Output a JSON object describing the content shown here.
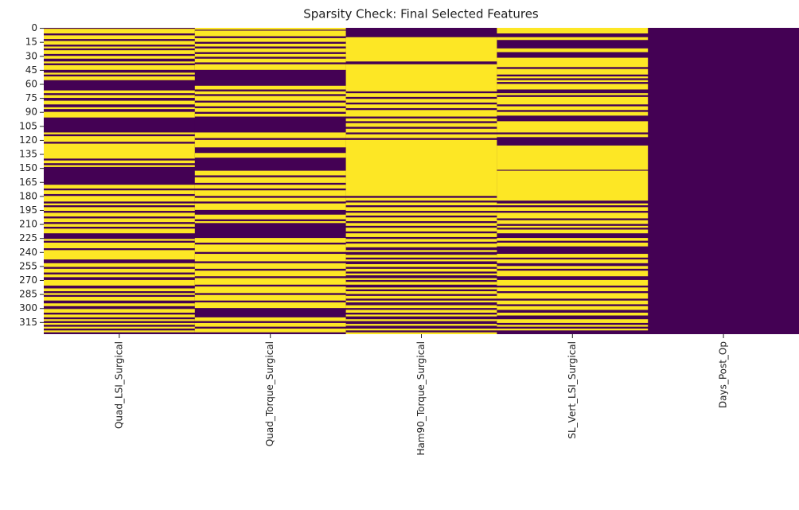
{
  "chart_data": {
    "type": "heatmap",
    "title": "Sparsity Check: Final Selected Features",
    "colors": {
      "on": "#fde725",
      "off": "#440154"
    },
    "ylim": [
      0,
      328
    ],
    "yticks": [
      0,
      15,
      30,
      45,
      60,
      75,
      90,
      105,
      120,
      135,
      150,
      165,
      180,
      195,
      210,
      225,
      240,
      255,
      270,
      285,
      300,
      315
    ],
    "series": [
      {
        "name": "Quad_LSI_Surgical",
        "spans": [
          [
            1,
            6
          ],
          [
            8,
            12
          ],
          [
            14,
            18
          ],
          [
            20,
            22
          ],
          [
            24,
            28
          ],
          [
            30,
            33
          ],
          [
            36,
            38
          ],
          [
            40,
            45
          ],
          [
            48,
            50
          ],
          [
            52,
            56
          ],
          [
            67,
            70
          ],
          [
            72,
            75
          ],
          [
            78,
            82
          ],
          [
            85,
            87
          ],
          [
            90,
            96
          ],
          [
            112,
            114
          ],
          [
            116,
            122
          ],
          [
            124,
            140
          ],
          [
            142,
            145
          ],
          [
            147,
            149
          ],
          [
            168,
            172
          ],
          [
            174,
            178
          ],
          [
            180,
            186
          ],
          [
            188,
            190
          ],
          [
            192,
            196
          ],
          [
            198,
            202
          ],
          [
            204,
            208
          ],
          [
            210,
            213
          ],
          [
            215,
            220
          ],
          [
            226,
            228
          ],
          [
            230,
            236
          ],
          [
            238,
            248
          ],
          [
            252,
            256
          ],
          [
            258,
            262
          ],
          [
            264,
            267
          ],
          [
            270,
            276
          ],
          [
            279,
            282
          ],
          [
            284,
            286
          ],
          [
            288,
            292
          ],
          [
            295,
            298
          ],
          [
            301,
            305
          ],
          [
            307,
            310
          ],
          [
            312,
            314
          ],
          [
            316,
            318
          ],
          [
            320,
            322
          ],
          [
            324,
            326
          ]
        ]
      },
      {
        "name": "Quad_Torque_Surgical",
        "spans": [
          [
            0,
            2
          ],
          [
            3,
            9
          ],
          [
            11,
            15
          ],
          [
            17,
            20
          ],
          [
            22,
            26
          ],
          [
            28,
            31
          ],
          [
            33,
            37
          ],
          [
            39,
            45
          ],
          [
            62,
            66
          ],
          [
            68,
            71
          ],
          [
            73,
            78
          ],
          [
            80,
            84
          ],
          [
            86,
            90
          ],
          [
            92,
            95
          ],
          [
            112,
            118
          ],
          [
            120,
            128
          ],
          [
            134,
            139
          ],
          [
            153,
            158
          ],
          [
            160,
            166
          ],
          [
            168,
            172
          ],
          [
            174,
            180
          ],
          [
            182,
            186
          ],
          [
            188,
            195
          ],
          [
            200,
            205
          ],
          [
            207,
            209
          ],
          [
            225,
            230
          ],
          [
            232,
            240
          ],
          [
            242,
            250
          ],
          [
            252,
            258
          ],
          [
            260,
            266
          ],
          [
            268,
            275
          ],
          [
            277,
            284
          ],
          [
            286,
            292
          ],
          [
            294,
            300
          ],
          [
            310,
            314
          ],
          [
            316,
            320
          ],
          [
            322,
            326
          ]
        ]
      },
      {
        "name": "Ham90_Torque_Surgical",
        "spans": [
          [
            10,
            36
          ],
          [
            39,
            68
          ],
          [
            70,
            74
          ],
          [
            76,
            80
          ],
          [
            82,
            86
          ],
          [
            88,
            95
          ],
          [
            97,
            100
          ],
          [
            102,
            106
          ],
          [
            108,
            112
          ],
          [
            114,
            118
          ],
          [
            120,
            180
          ],
          [
            182,
            185
          ],
          [
            187,
            190
          ],
          [
            192,
            196
          ],
          [
            198,
            201
          ],
          [
            203,
            207
          ],
          [
            209,
            212
          ],
          [
            214,
            218
          ],
          [
            220,
            224
          ],
          [
            226,
            229
          ],
          [
            231,
            235
          ],
          [
            238,
            240
          ],
          [
            243,
            246
          ],
          [
            248,
            250
          ],
          [
            253,
            256
          ],
          [
            258,
            261
          ],
          [
            263,
            265
          ],
          [
            268,
            270
          ],
          [
            272,
            275
          ],
          [
            278,
            280
          ],
          [
            282,
            285
          ],
          [
            287,
            290
          ],
          [
            292,
            294
          ],
          [
            297,
            300
          ],
          [
            302,
            305
          ],
          [
            307,
            309
          ],
          [
            312,
            314
          ],
          [
            317,
            319
          ],
          [
            322,
            324
          ],
          [
            326,
            328
          ]
        ]
      },
      {
        "name": "SL_Vert_LSI_Surgical",
        "spans": [
          [
            0,
            6
          ],
          [
            10,
            13
          ],
          [
            22,
            26
          ],
          [
            32,
            42
          ],
          [
            44,
            50
          ],
          [
            52,
            54
          ],
          [
            56,
            58
          ],
          [
            60,
            66
          ],
          [
            70,
            72
          ],
          [
            74,
            82
          ],
          [
            84,
            88
          ],
          [
            90,
            94
          ],
          [
            100,
            112
          ],
          [
            114,
            117
          ],
          [
            126,
            152
          ],
          [
            153,
            185
          ],
          [
            188,
            190
          ],
          [
            192,
            196
          ],
          [
            198,
            204
          ],
          [
            206,
            210
          ],
          [
            212,
            214
          ],
          [
            216,
            220
          ],
          [
            225,
            228
          ],
          [
            230,
            234
          ],
          [
            242,
            246
          ],
          [
            248,
            252
          ],
          [
            255,
            258
          ],
          [
            260,
            266
          ],
          [
            270,
            276
          ],
          [
            278,
            282
          ],
          [
            284,
            290
          ],
          [
            292,
            296
          ],
          [
            298,
            302
          ],
          [
            305,
            308
          ],
          [
            312,
            316
          ],
          [
            318,
            320
          ],
          [
            322,
            324
          ]
        ]
      },
      {
        "name": "Days_Post_Op",
        "spans": []
      }
    ]
  }
}
